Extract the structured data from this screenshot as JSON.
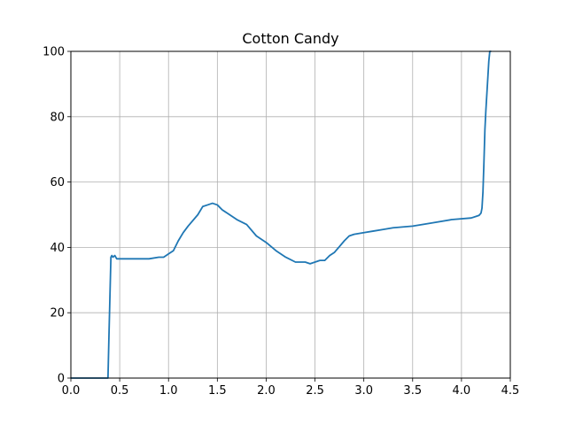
{
  "chart_data": {
    "type": "line",
    "title": "Cotton Candy",
    "xlabel": "",
    "ylabel": "",
    "xlim": [
      0,
      4.5
    ],
    "ylim": [
      0,
      100
    ],
    "xticks": [
      0.0,
      0.5,
      1.0,
      1.5,
      2.0,
      2.5,
      3.0,
      3.5,
      4.0,
      4.5
    ],
    "xtick_labels": [
      "0.0",
      "0.5",
      "1.0",
      "1.5",
      "2.0",
      "2.5",
      "3.0",
      "3.5",
      "4.0",
      "4.5"
    ],
    "yticks": [
      0,
      20,
      40,
      60,
      80,
      100
    ],
    "ytick_labels": [
      "0",
      "20",
      "40",
      "60",
      "80",
      "100"
    ],
    "grid": true,
    "color": "#1f77b4",
    "series": [
      {
        "x": [
          0.0,
          0.1,
          0.2,
          0.3,
          0.38,
          0.39,
          0.41,
          0.42,
          0.43,
          0.45,
          0.47,
          0.5,
          0.55,
          0.6,
          0.7,
          0.8,
          0.9,
          0.95,
          1.0,
          1.05,
          1.1,
          1.15,
          1.2,
          1.3,
          1.35,
          1.4,
          1.45,
          1.5,
          1.55,
          1.6,
          1.7,
          1.8,
          1.9,
          2.0,
          2.1,
          2.2,
          2.3,
          2.4,
          2.45,
          2.5,
          2.55,
          2.6,
          2.65,
          2.7,
          2.8,
          2.85,
          2.9,
          3.0,
          3.1,
          3.2,
          3.3,
          3.5,
          3.7,
          3.9,
          4.1,
          4.15,
          4.18,
          4.2,
          4.21,
          4.22,
          4.23,
          4.24,
          4.25,
          4.27,
          4.28,
          4.29,
          4.3
        ],
        "y": [
          0,
          0,
          0,
          0,
          0,
          13,
          37,
          37.5,
          37,
          37.5,
          36.5,
          36.5,
          36.5,
          36.5,
          36.5,
          36.5,
          37,
          37,
          38,
          39,
          42,
          44.5,
          46.5,
          50,
          52.5,
          53,
          53.5,
          53,
          51.5,
          50.5,
          48.5,
          47,
          43.5,
          41.5,
          39,
          37,
          35.5,
          35.5,
          35,
          35.5,
          36,
          36,
          37.5,
          38.5,
          42,
          43.5,
          44,
          44.5,
          45,
          45.5,
          46,
          46.5,
          47.5,
          48.5,
          49,
          49.5,
          49.8,
          50.5,
          52,
          57,
          66,
          76,
          82,
          92,
          97,
          100,
          100
        ]
      }
    ]
  }
}
